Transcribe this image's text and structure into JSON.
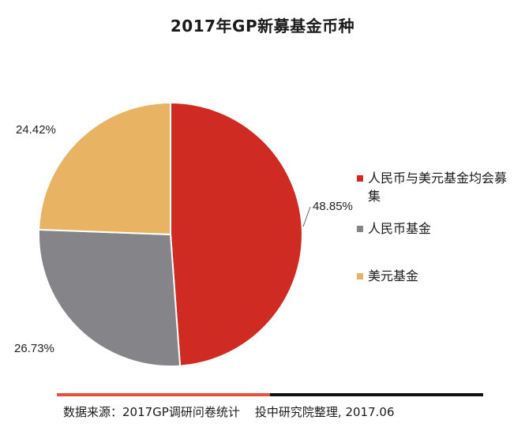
{
  "chart_data": {
    "type": "pie",
    "title": "2017年GP新募基金币种",
    "slices": [
      {
        "label": "人民币与美元基金均会募集",
        "value": 48.85,
        "value_label": "48.85%",
        "color": "#cf2b22"
      },
      {
        "label": "人民币基金",
        "value": 26.73,
        "value_label": "26.73%",
        "color": "#858488"
      },
      {
        "label": "美元基金",
        "value": 24.42,
        "value_label": "24.42%",
        "color": "#e8b463"
      }
    ],
    "start_angle": "12 o'clock",
    "direction": "clockwise",
    "legend_position": "right"
  },
  "footer": {
    "source_text": "数据来源：2017GP调研问卷统计    投中研究院整理, 2017.06",
    "bar_colors": [
      "#e8513a",
      "#111111"
    ]
  }
}
